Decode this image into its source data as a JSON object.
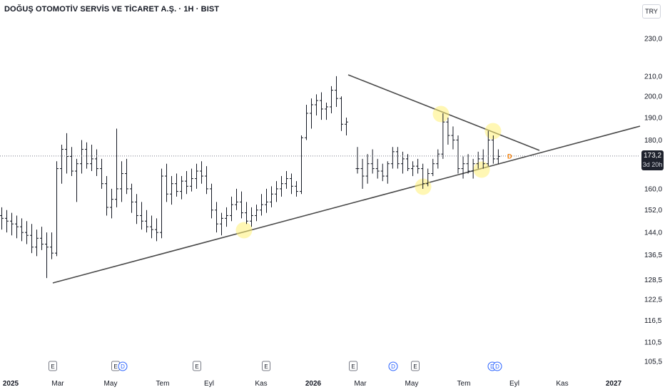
{
  "header": {
    "title": "DOĞUŞ OTOMOTİV SERVİS VE TİCARET A.Ş. · 1H · BIST",
    "currency": "TRY"
  },
  "price_label": {
    "price": "173,2",
    "countdown": "3d 20h"
  },
  "colors": {
    "bar": "#131722",
    "trendline": "#4a4a4a",
    "highlight": "#fff176",
    "dividend": "#2962ff",
    "event_border": "#787b86",
    "price_box": "#1e222d",
    "dotted_price_line": "#787b86",
    "d_marker": "#f57c00"
  },
  "chart_data": {
    "type": "ohlc",
    "y_axis": {
      "scale": "log",
      "ticks": [
        "230,0",
        "210,0",
        "200,0",
        "190,0",
        "180,0",
        "173,2",
        "160,0",
        "152,0",
        "144,0",
        "136,5",
        "128,5",
        "122,5",
        "116,5",
        "110,5",
        "105,5"
      ]
    },
    "y_tick_values": [
      230,
      210,
      200,
      190,
      180,
      160,
      152,
      144,
      136.5,
      128.5,
      122.5,
      116.5,
      110.5,
      105.5
    ],
    "x_axis": {
      "ticks": [
        {
          "label": "2025",
          "bold": true
        },
        {
          "label": "Mar",
          "bold": false
        },
        {
          "label": "May",
          "bold": false
        },
        {
          "label": "Tem",
          "bold": false
        },
        {
          "label": "Eyl",
          "bold": false
        },
        {
          "label": "Kas",
          "bold": false
        },
        {
          "label": "2026",
          "bold": true
        },
        {
          "label": "Mar",
          "bold": false
        },
        {
          "label": "May",
          "bold": false
        },
        {
          "label": "Tem",
          "bold": false
        },
        {
          "label": "Eyl",
          "bold": false
        },
        {
          "label": "Kas",
          "bold": false
        },
        {
          "label": "2027",
          "bold": true
        }
      ]
    },
    "last_price": 173.2,
    "bars": [
      {
        "o": 150,
        "h": 153,
        "l": 145,
        "c": 149
      },
      {
        "o": 149,
        "h": 152,
        "l": 144,
        "c": 148
      },
      {
        "o": 148,
        "h": 151,
        "l": 143,
        "c": 147
      },
      {
        "o": 147,
        "h": 150,
        "l": 142,
        "c": 146
      },
      {
        "o": 146,
        "h": 149,
        "l": 141,
        "c": 144
      },
      {
        "o": 144,
        "h": 148,
        "l": 140,
        "c": 143
      },
      {
        "o": 143,
        "h": 147,
        "l": 137,
        "c": 139
      },
      {
        "o": 139,
        "h": 145,
        "l": 136,
        "c": 142
      },
      {
        "o": 142,
        "h": 146,
        "l": 138,
        "c": 140
      },
      {
        "o": 140,
        "h": 144,
        "l": 129,
        "c": 139
      },
      {
        "o": 139,
        "h": 144,
        "l": 135,
        "c": 137
      },
      {
        "o": 137,
        "h": 171,
        "l": 136,
        "c": 168
      },
      {
        "o": 168,
        "h": 178,
        "l": 162,
        "c": 176
      },
      {
        "o": 176,
        "h": 183,
        "l": 166,
        "c": 173
      },
      {
        "o": 173,
        "h": 177,
        "l": 165,
        "c": 167
      },
      {
        "o": 167,
        "h": 172,
        "l": 155,
        "c": 170
      },
      {
        "o": 170,
        "h": 180,
        "l": 166,
        "c": 176
      },
      {
        "o": 176,
        "h": 179,
        "l": 168,
        "c": 170
      },
      {
        "o": 170,
        "h": 178,
        "l": 167,
        "c": 172
      },
      {
        "o": 172,
        "h": 176,
        "l": 165,
        "c": 168
      },
      {
        "o": 168,
        "h": 172,
        "l": 160,
        "c": 162
      },
      {
        "o": 162,
        "h": 165,
        "l": 150,
        "c": 153
      },
      {
        "o": 153,
        "h": 160,
        "l": 149,
        "c": 156
      },
      {
        "o": 156,
        "h": 185,
        "l": 153,
        "c": 160
      },
      {
        "o": 160,
        "h": 171,
        "l": 155,
        "c": 166
      },
      {
        "o": 166,
        "h": 172,
        "l": 158,
        "c": 160
      },
      {
        "o": 160,
        "h": 162,
        "l": 151,
        "c": 155
      },
      {
        "o": 155,
        "h": 158,
        "l": 147,
        "c": 150
      },
      {
        "o": 150,
        "h": 155,
        "l": 145,
        "c": 148
      },
      {
        "o": 148,
        "h": 152,
        "l": 144,
        "c": 146
      },
      {
        "o": 146,
        "h": 150,
        "l": 142,
        "c": 145
      },
      {
        "o": 145,
        "h": 149,
        "l": 141,
        "c": 144
      },
      {
        "o": 144,
        "h": 168,
        "l": 142,
        "c": 165
      },
      {
        "o": 165,
        "h": 170,
        "l": 155,
        "c": 158
      },
      {
        "o": 158,
        "h": 165,
        "l": 154,
        "c": 162
      },
      {
        "o": 162,
        "h": 166,
        "l": 157,
        "c": 159
      },
      {
        "o": 159,
        "h": 165,
        "l": 156,
        "c": 163
      },
      {
        "o": 163,
        "h": 167,
        "l": 158,
        "c": 161
      },
      {
        "o": 161,
        "h": 168,
        "l": 159,
        "c": 164
      },
      {
        "o": 164,
        "h": 170,
        "l": 160,
        "c": 167
      },
      {
        "o": 167,
        "h": 171,
        "l": 162,
        "c": 165
      },
      {
        "o": 165,
        "h": 169,
        "l": 158,
        "c": 160
      },
      {
        "o": 160,
        "h": 162,
        "l": 149,
        "c": 152
      },
      {
        "o": 152,
        "h": 155,
        "l": 144,
        "c": 147
      },
      {
        "o": 147,
        "h": 151,
        "l": 143,
        "c": 149
      },
      {
        "o": 149,
        "h": 153,
        "l": 146,
        "c": 150
      },
      {
        "o": 150,
        "h": 157,
        "l": 148,
        "c": 154
      },
      {
        "o": 154,
        "h": 160,
        "l": 152,
        "c": 155
      },
      {
        "o": 155,
        "h": 159,
        "l": 149,
        "c": 151
      },
      {
        "o": 151,
        "h": 155,
        "l": 147,
        "c": 148
      },
      {
        "o": 148,
        "h": 153,
        "l": 146,
        "c": 150
      },
      {
        "o": 150,
        "h": 154,
        "l": 148,
        "c": 152
      },
      {
        "o": 152,
        "h": 158,
        "l": 150,
        "c": 154
      },
      {
        "o": 154,
        "h": 160,
        "l": 151,
        "c": 155
      },
      {
        "o": 155,
        "h": 161,
        "l": 153,
        "c": 158
      },
      {
        "o": 158,
        "h": 163,
        "l": 155,
        "c": 160
      },
      {
        "o": 160,
        "h": 165,
        "l": 157,
        "c": 162
      },
      {
        "o": 162,
        "h": 167,
        "l": 160,
        "c": 164
      },
      {
        "o": 164,
        "h": 166,
        "l": 158,
        "c": 161
      },
      {
        "o": 161,
        "h": 163,
        "l": 157,
        "c": 159
      },
      {
        "o": 159,
        "h": 182,
        "l": 158,
        "c": 181
      },
      {
        "o": 181,
        "h": 196,
        "l": 180,
        "c": 192
      },
      {
        "o": 192,
        "h": 199,
        "l": 185,
        "c": 196
      },
      {
        "o": 196,
        "h": 201,
        "l": 191,
        "c": 198
      },
      {
        "o": 198,
        "h": 202,
        "l": 189,
        "c": 194
      },
      {
        "o": 194,
        "h": 197,
        "l": 189,
        "c": 195
      },
      {
        "o": 195,
        "h": 205,
        "l": 192,
        "c": 203
      },
      {
        "o": 203,
        "h": 210,
        "l": 195,
        "c": 199
      },
      {
        "o": 199,
        "h": 200,
        "l": 184,
        "c": 187
      },
      {
        "o": 187,
        "h": 190,
        "l": 182,
        "c": 188
      },
      {
        "o": 168,
        "h": 177,
        "l": 166,
        "c": 168
      },
      {
        "o": 168,
        "h": 172,
        "l": 160,
        "c": 165
      },
      {
        "o": 165,
        "h": 174,
        "l": 162,
        "c": 170
      },
      {
        "o": 170,
        "h": 176,
        "l": 166,
        "c": 168
      },
      {
        "o": 168,
        "h": 172,
        "l": 164,
        "c": 167
      },
      {
        "o": 167,
        "h": 170,
        "l": 163,
        "c": 165
      },
      {
        "o": 165,
        "h": 171,
        "l": 162,
        "c": 170
      },
      {
        "o": 170,
        "h": 177,
        "l": 168,
        "c": 175
      },
      {
        "o": 175,
        "h": 177,
        "l": 168,
        "c": 170
      },
      {
        "o": 170,
        "h": 175,
        "l": 166,
        "c": 172
      },
      {
        "o": 172,
        "h": 174,
        "l": 167,
        "c": 168
      },
      {
        "o": 168,
        "h": 171,
        "l": 165,
        "c": 169
      },
      {
        "o": 169,
        "h": 172,
        "l": 166,
        "c": 168
      },
      {
        "o": 168,
        "h": 170,
        "l": 160,
        "c": 162
      },
      {
        "o": 162,
        "h": 168,
        "l": 161,
        "c": 166
      },
      {
        "o": 166,
        "h": 172,
        "l": 165,
        "c": 170
      },
      {
        "o": 170,
        "h": 176,
        "l": 168,
        "c": 174
      },
      {
        "o": 174,
        "h": 192,
        "l": 172,
        "c": 188
      },
      {
        "o": 188,
        "h": 190,
        "l": 178,
        "c": 182
      },
      {
        "o": 182,
        "h": 186,
        "l": 176,
        "c": 180
      },
      {
        "o": 180,
        "h": 182,
        "l": 166,
        "c": 168
      },
      {
        "o": 168,
        "h": 173,
        "l": 164,
        "c": 170
      },
      {
        "o": 170,
        "h": 174,
        "l": 166,
        "c": 167
      },
      {
        "o": 167,
        "h": 172,
        "l": 164,
        "c": 170
      },
      {
        "o": 170,
        "h": 175,
        "l": 168,
        "c": 172
      },
      {
        "o": 172,
        "h": 176,
        "l": 168,
        "c": 170
      },
      {
        "o": 170,
        "h": 184,
        "l": 169,
        "c": 180
      },
      {
        "o": 180,
        "h": 182,
        "l": 170,
        "c": 172
      },
      {
        "o": 172,
        "h": 176,
        "l": 170,
        "c": 173
      }
    ],
    "trendlines": [
      {
        "name": "support",
        "from": {
          "bar": 10,
          "price": 128
        },
        "to": {
          "bar": 140,
          "price": 186
        }
      },
      {
        "name": "resistance",
        "from": {
          "bar": 67,
          "price": 210
        },
        "to": {
          "bar": 105,
          "price": 176
        }
      }
    ],
    "highlights": [
      {
        "bar": 46,
        "price": 145
      },
      {
        "bar": 81,
        "price": 161
      },
      {
        "bar": 86,
        "price": 190
      },
      {
        "bar": 92,
        "price": 166
      },
      {
        "bar": 95,
        "price": 183
      }
    ],
    "events": [
      {
        "type": "E",
        "bar": 10
      },
      {
        "type": "E",
        "bar": 22
      },
      {
        "type": "D",
        "bar": 23
      },
      {
        "type": "E",
        "bar": 38
      },
      {
        "type": "E",
        "bar": 51
      },
      {
        "type": "E",
        "bar": 68
      },
      {
        "type": "D",
        "bar": 76
      },
      {
        "type": "E",
        "bar": 80
      },
      {
        "type": "D",
        "bar": 95
      },
      {
        "type": "D",
        "bar": 96
      }
    ],
    "d_marker": "D"
  }
}
